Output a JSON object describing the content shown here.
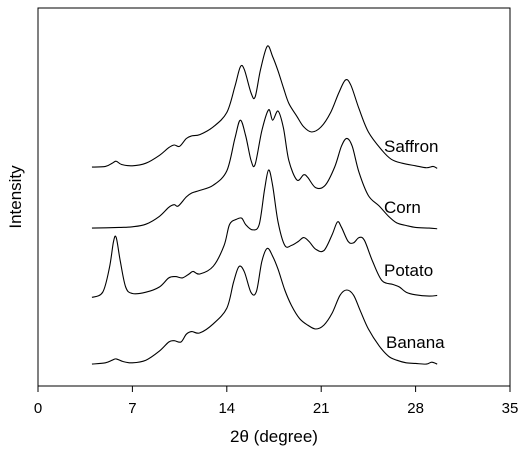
{
  "chart_data": {
    "type": "line",
    "title": "",
    "xlabel": "2θ (degree)",
    "ylabel": "Intensity",
    "xlim": [
      0,
      35
    ],
    "x_ticks": [
      0,
      7,
      14,
      21,
      28,
      35
    ],
    "y_ticks_shown": false,
    "grid": false,
    "legend": "none (series labels placed next to curves)",
    "series": [
      {
        "name": "Saffron",
        "points": [
          [
            4,
            0.03
          ],
          [
            5,
            0.035
          ],
          [
            5.5,
            0.06
          ],
          [
            5.8,
            0.075
          ],
          [
            6.2,
            0.05
          ],
          [
            7,
            0.04
          ],
          [
            8,
            0.06
          ],
          [
            9,
            0.12
          ],
          [
            9.7,
            0.18
          ],
          [
            10.1,
            0.2
          ],
          [
            10.5,
            0.19
          ],
          [
            11,
            0.25
          ],
          [
            11.4,
            0.27
          ],
          [
            12,
            0.28
          ],
          [
            13,
            0.34
          ],
          [
            14,
            0.45
          ],
          [
            14.6,
            0.65
          ],
          [
            15,
            0.8
          ],
          [
            15.3,
            0.78
          ],
          [
            15.8,
            0.6
          ],
          [
            16.1,
            0.57
          ],
          [
            16.5,
            0.78
          ],
          [
            17,
            0.96
          ],
          [
            17.4,
            0.88
          ],
          [
            17.8,
            0.77
          ],
          [
            18.2,
            0.64
          ],
          [
            18.6,
            0.52
          ],
          [
            19.2,
            0.42
          ],
          [
            19.7,
            0.34
          ],
          [
            20.3,
            0.3
          ],
          [
            21,
            0.34
          ],
          [
            21.7,
            0.45
          ],
          [
            22.3,
            0.6
          ],
          [
            22.8,
            0.7
          ],
          [
            23.2,
            0.66
          ],
          [
            23.8,
            0.48
          ],
          [
            24.5,
            0.3
          ],
          [
            25.5,
            0.16
          ],
          [
            26.2,
            0.09
          ],
          [
            27,
            0.06
          ],
          [
            28,
            0.04
          ],
          [
            28.8,
            0.025
          ],
          [
            29.3,
            0.035
          ],
          [
            29.6,
            0.02
          ]
        ]
      },
      {
        "name": "Corn",
        "points": [
          [
            4,
            0.03
          ],
          [
            6,
            0.035
          ],
          [
            7,
            0.04
          ],
          [
            8,
            0.06
          ],
          [
            9,
            0.12
          ],
          [
            9.7,
            0.19
          ],
          [
            10.1,
            0.21
          ],
          [
            10.4,
            0.2
          ],
          [
            11,
            0.27
          ],
          [
            11.4,
            0.3
          ],
          [
            12,
            0.32
          ],
          [
            13,
            0.36
          ],
          [
            14,
            0.47
          ],
          [
            14.6,
            0.72
          ],
          [
            15,
            0.86
          ],
          [
            15.4,
            0.74
          ],
          [
            15.8,
            0.55
          ],
          [
            16.1,
            0.52
          ],
          [
            16.6,
            0.78
          ],
          [
            17.1,
            0.94
          ],
          [
            17.4,
            0.86
          ],
          [
            17.8,
            0.93
          ],
          [
            18.2,
            0.8
          ],
          [
            18.6,
            0.55
          ],
          [
            19.2,
            0.4
          ],
          [
            19.7,
            0.44
          ],
          [
            20,
            0.42
          ],
          [
            20.6,
            0.34
          ],
          [
            21.3,
            0.36
          ],
          [
            22,
            0.5
          ],
          [
            22.5,
            0.66
          ],
          [
            22.9,
            0.72
          ],
          [
            23.3,
            0.66
          ],
          [
            23.8,
            0.46
          ],
          [
            24.5,
            0.28
          ],
          [
            25.3,
            0.2
          ],
          [
            26,
            0.12
          ],
          [
            26.6,
            0.07
          ],
          [
            27.3,
            0.05
          ],
          [
            28,
            0.035
          ],
          [
            29,
            0.03
          ],
          [
            29.6,
            0.025
          ]
        ]
      },
      {
        "name": "Potato",
        "points": [
          [
            4,
            0.02
          ],
          [
            4.8,
            0.06
          ],
          [
            5.3,
            0.25
          ],
          [
            5.6,
            0.45
          ],
          [
            5.8,
            0.48
          ],
          [
            6.1,
            0.3
          ],
          [
            6.5,
            0.1
          ],
          [
            7,
            0.05
          ],
          [
            8,
            0.06
          ],
          [
            9,
            0.1
          ],
          [
            9.7,
            0.17
          ],
          [
            10.2,
            0.18
          ],
          [
            10.7,
            0.17
          ],
          [
            11.2,
            0.2
          ],
          [
            11.5,
            0.22
          ],
          [
            12,
            0.2
          ],
          [
            13,
            0.26
          ],
          [
            13.8,
            0.42
          ],
          [
            14.2,
            0.58
          ],
          [
            14.7,
            0.62
          ],
          [
            15.1,
            0.63
          ],
          [
            15.4,
            0.58
          ],
          [
            15.9,
            0.54
          ],
          [
            16.4,
            0.58
          ],
          [
            16.8,
            0.85
          ],
          [
            17.1,
            1.0
          ],
          [
            17.4,
            0.88
          ],
          [
            17.8,
            0.6
          ],
          [
            18.3,
            0.42
          ],
          [
            18.8,
            0.42
          ],
          [
            19.3,
            0.45
          ],
          [
            19.7,
            0.48
          ],
          [
            20.1,
            0.45
          ],
          [
            20.6,
            0.39
          ],
          [
            21.2,
            0.38
          ],
          [
            21.8,
            0.5
          ],
          [
            22.2,
            0.6
          ],
          [
            22.5,
            0.56
          ],
          [
            23,
            0.45
          ],
          [
            23.4,
            0.44
          ],
          [
            23.8,
            0.48
          ],
          [
            24.2,
            0.46
          ],
          [
            24.8,
            0.3
          ],
          [
            25.5,
            0.15
          ],
          [
            26.3,
            0.12
          ],
          [
            26.8,
            0.1
          ],
          [
            27.3,
            0.06
          ],
          [
            28,
            0.04
          ],
          [
            29,
            0.03
          ],
          [
            29.6,
            0.035
          ]
        ]
      },
      {
        "name": "Banana",
        "points": [
          [
            4,
            0.03
          ],
          [
            5,
            0.04
          ],
          [
            5.5,
            0.06
          ],
          [
            5.8,
            0.07
          ],
          [
            6.3,
            0.05
          ],
          [
            7,
            0.04
          ],
          [
            8,
            0.06
          ],
          [
            9,
            0.13
          ],
          [
            9.7,
            0.2
          ],
          [
            10.1,
            0.21
          ],
          [
            10.6,
            0.2
          ],
          [
            11,
            0.26
          ],
          [
            11.4,
            0.28
          ],
          [
            12,
            0.27
          ],
          [
            13,
            0.34
          ],
          [
            14,
            0.46
          ],
          [
            14.5,
            0.66
          ],
          [
            14.9,
            0.78
          ],
          [
            15.3,
            0.74
          ],
          [
            15.8,
            0.58
          ],
          [
            16.2,
            0.59
          ],
          [
            16.6,
            0.82
          ],
          [
            17,
            0.92
          ],
          [
            17.4,
            0.86
          ],
          [
            17.8,
            0.76
          ],
          [
            18.3,
            0.6
          ],
          [
            18.8,
            0.48
          ],
          [
            19.4,
            0.38
          ],
          [
            20,
            0.33
          ],
          [
            20.6,
            0.3
          ],
          [
            21.2,
            0.33
          ],
          [
            21.8,
            0.42
          ],
          [
            22.4,
            0.56
          ],
          [
            22.9,
            0.6
          ],
          [
            23.4,
            0.56
          ],
          [
            23.9,
            0.44
          ],
          [
            24.5,
            0.3
          ],
          [
            25.3,
            0.17
          ],
          [
            26,
            0.09
          ],
          [
            26.6,
            0.06
          ],
          [
            27.3,
            0.04
          ],
          [
            28,
            0.035
          ],
          [
            28.8,
            0.03
          ],
          [
            29.2,
            0.045
          ],
          [
            29.6,
            0.03
          ]
        ]
      }
    ]
  }
}
